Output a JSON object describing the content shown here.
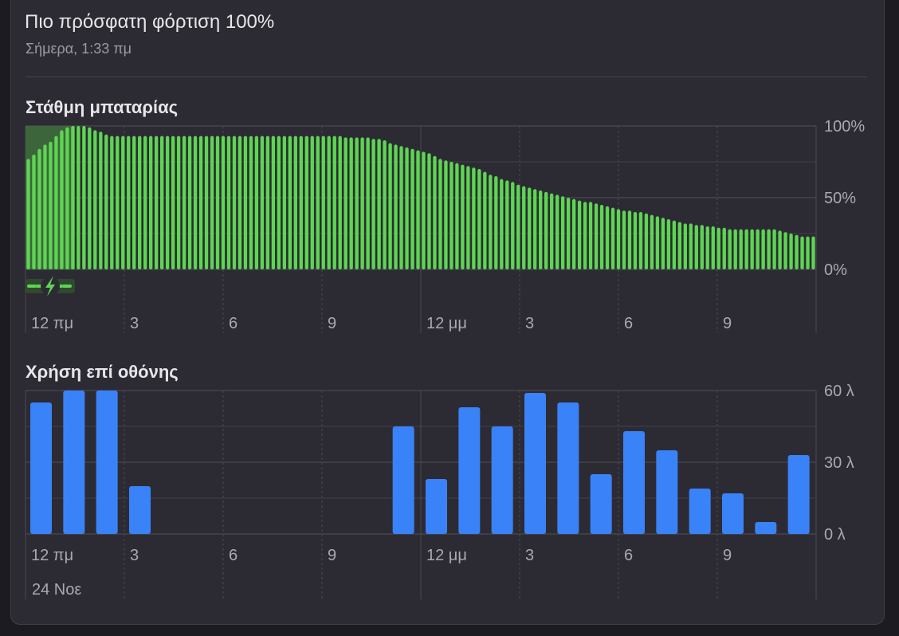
{
  "header": {
    "title": "Πιο πρόσφατη φόρτιση 100%",
    "subtitle": "Σήμερα, 1:33 πμ"
  },
  "battery_section": {
    "title": "Στάθμη μπαταρίας"
  },
  "screen_section": {
    "title": "Χρήση επί οθόνης"
  },
  "date_label": "24 Νοε",
  "colors": {
    "battery": "#5ed553",
    "charging_overlay": "#3f6b3d",
    "usage": "#3a82f7",
    "grid": "#4a4951",
    "label": "#a9a9b0"
  },
  "chart_data": [
    {
      "type": "bar",
      "title": "Στάθμη μπαταρίας",
      "x_tick_labels": [
        "12 πμ",
        "3",
        "6",
        "9",
        "12 μμ",
        "3",
        "6",
        "9"
      ],
      "y_tick_labels": [
        "100%",
        "50%",
        "0%"
      ],
      "ylim": [
        0,
        100
      ],
      "charging_period_hours": [
        0,
        1.5
      ],
      "charging_icon": "bolt-icon",
      "x_step_hours": 0.25,
      "values": [
        77,
        80,
        84,
        87,
        89,
        93,
        97,
        99,
        100,
        100,
        100,
        99,
        97,
        96,
        94,
        93,
        93,
        93,
        93,
        93,
        93,
        93,
        93,
        93,
        93,
        93,
        93,
        93,
        93,
        93,
        93,
        93,
        93,
        93,
        93,
        93,
        93,
        93,
        93,
        93,
        93,
        93,
        93,
        93,
        93,
        93,
        93,
        93,
        93,
        93,
        93,
        93,
        93,
        93,
        93,
        93,
        93,
        92,
        92,
        92,
        92,
        92,
        91,
        91,
        90,
        88,
        87,
        86,
        85,
        84,
        83,
        82,
        81,
        79,
        77,
        76,
        75,
        74,
        73,
        72,
        71,
        70,
        68,
        66,
        65,
        63,
        62,
        61,
        59,
        58,
        57,
        56,
        55,
        54,
        53,
        52,
        51,
        50,
        49,
        48,
        47,
        47,
        46,
        45,
        44,
        43,
        42,
        41,
        41,
        40,
        40,
        39,
        38,
        37,
        36,
        35,
        34,
        33,
        32,
        32,
        31,
        31,
        30,
        30,
        29,
        29,
        28,
        28,
        28,
        28,
        28,
        28,
        28,
        28,
        28,
        27,
        26,
        25,
        24,
        23,
        23,
        23
      ],
      "grid": true
    },
    {
      "type": "bar",
      "title": "Χρήση επί οθόνης",
      "x_tick_labels": [
        "12 πμ",
        "3",
        "6",
        "9",
        "12 μμ",
        "3",
        "6",
        "9"
      ],
      "y_tick_labels": [
        "60 λ",
        "30 λ",
        "0 λ"
      ],
      "ylim": [
        0,
        60
      ],
      "x_step_hours": 1,
      "values": [
        55,
        60,
        60,
        20,
        0,
        0,
        0,
        0,
        0,
        0,
        0,
        45,
        23,
        53,
        45,
        59,
        55,
        25,
        43,
        35,
        19,
        17,
        5,
        33
      ],
      "grid": true
    }
  ]
}
